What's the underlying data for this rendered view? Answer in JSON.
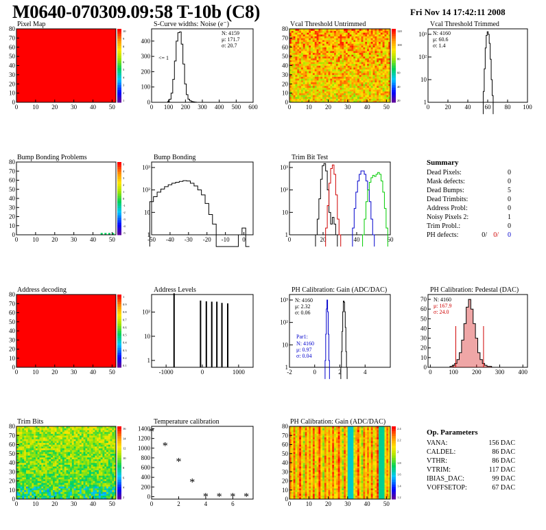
{
  "header": {
    "title": "M0640-070309.09:58 T-10b (C8)",
    "date": "Fri Nov 14 17:42:11 2008"
  },
  "colors": {
    "hist_black": "#000000",
    "red": "#d00000",
    "blue": "#0000cc",
    "green": "#00cc00",
    "pixelmap_fill": "#ff0000"
  },
  "colorbar_ticks": {
    "pixel_map": [
      "10",
      "9",
      "8",
      "7",
      "6",
      "5",
      "4",
      "3",
      "2",
      "1"
    ],
    "vcal": [
      "120",
      "100",
      "80",
      "60",
      "40",
      "20"
    ],
    "bump": [
      "5",
      "4",
      "3",
      "2",
      "1",
      "0",
      "-1",
      "-2",
      "-3",
      "-4",
      "-5"
    ],
    "address": [
      "1",
      "0.9",
      "0.8",
      "0.7",
      "0.6",
      "0.5",
      "0.4",
      "0.3",
      "0.2",
      "0.1"
    ],
    "trim_bits": [
      "16",
      "14",
      "12",
      "10",
      "8",
      "6",
      "4",
      "2"
    ],
    "ph_gain": [
      "2.4",
      "2.2",
      "2",
      "1.8",
      "1.6",
      "1.4",
      "1.2"
    ]
  },
  "summary": {
    "title": "Summary",
    "rows": [
      {
        "label": "Dead Pixels:",
        "value": "0"
      },
      {
        "label": "Mask defects:",
        "value": "0"
      },
      {
        "label": "Dead Bumps:",
        "value": "5"
      },
      {
        "label": "Dead Trimbits:",
        "value": "0"
      },
      {
        "label": "Address Probl:",
        "value": "0"
      },
      {
        "label": "Noisy Pixels 2:",
        "value": "1"
      },
      {
        "label": "Trim Probl.:",
        "value": "0"
      }
    ],
    "ph_defects": {
      "label": "PH defects:",
      "v1": "0/",
      "v2": "0/",
      "v3": "0"
    }
  },
  "op_params": {
    "title": "Op. Parameters",
    "rows": [
      {
        "label": "VANA:",
        "value": "156 DAC"
      },
      {
        "label": "CALDEL:",
        "value": "86 DAC"
      },
      {
        "label": "VTHR:",
        "value": "86 DAC"
      },
      {
        "label": "VTRIM:",
        "value": "117 DAC"
      },
      {
        "label": "IBIAS_DAC:",
        "value": "99 DAC"
      },
      {
        "label": "VOFFSETOP:",
        "value": "67 DAC"
      }
    ]
  },
  "chart_data": [
    {
      "id": "pixel_map",
      "type": "heatmap",
      "title": "Pixel Map",
      "xlim": [
        0,
        52
      ],
      "ylim": [
        0,
        80
      ],
      "xticks": [
        "0",
        "10",
        "20",
        "30",
        "40",
        "50"
      ],
      "yticks": [
        "0",
        "10",
        "20",
        "30",
        "40",
        "50",
        "60",
        "70",
        "80"
      ],
      "fill": "uniform red (value 10)"
    },
    {
      "id": "scurve",
      "type": "bar",
      "title": "S-Curve widths: Noise (e⁻)",
      "xlim": [
        0,
        600
      ],
      "log": false,
      "xticks": [
        "0",
        "100",
        "200",
        "300",
        "400",
        "500",
        "600"
      ],
      "yticks": [
        "0",
        "100",
        "200",
        "300",
        "400"
      ],
      "stats": [
        "N: 4159",
        "μ: 171.7",
        "σ: 20.7"
      ],
      "annotation": "<= 1",
      "x": [
        100,
        110,
        120,
        130,
        140,
        150,
        160,
        170,
        180,
        190,
        200,
        210,
        220,
        230,
        240,
        250,
        260
      ],
      "values": [
        5,
        20,
        60,
        150,
        270,
        400,
        455,
        460,
        380,
        250,
        120,
        50,
        20,
        10,
        5,
        3,
        1
      ]
    },
    {
      "id": "vcal_untrimmed",
      "type": "heatmap",
      "title": "Vcal Threshold Untrimmed",
      "xlim": [
        0,
        52
      ],
      "ylim": [
        0,
        80
      ],
      "xticks": [
        "0",
        "10",
        "20",
        "30",
        "40",
        "50"
      ],
      "yticks": [
        "0",
        "10",
        "20",
        "30",
        "40",
        "50",
        "60",
        "70",
        "80"
      ],
      "fill": "noisy orange-red (values ~70-110)"
    },
    {
      "id": "vcal_trimmed",
      "type": "bar",
      "title": "Vcal Threshold Trimmed",
      "xlim": [
        0,
        100
      ],
      "log": true,
      "xticks": [
        "0",
        "20",
        "40",
        "60",
        "80",
        "100"
      ],
      "yticks": [
        "1",
        "10",
        "10²",
        "10³"
      ],
      "stats": [
        "N: 4160",
        "μ: 60.6",
        "σ: 1.4"
      ],
      "x": [
        56,
        57,
        58,
        59,
        60,
        61,
        62,
        63,
        64,
        65
      ],
      "values": [
        3,
        30,
        250,
        900,
        1300,
        1000,
        400,
        80,
        10,
        2
      ]
    },
    {
      "id": "bump_problems",
      "type": "heatmap",
      "title": "Bump Bonding Problems",
      "xlim": [
        0,
        52
      ],
      "ylim": [
        0,
        80
      ],
      "xticks": [
        "0",
        "10",
        "20",
        "30",
        "40",
        "50"
      ],
      "yticks": [
        "0",
        "10",
        "20",
        "30",
        "40",
        "50",
        "60",
        "70",
        "80"
      ],
      "fill": "empty except 5 cells near x=45-50, y=0-1"
    },
    {
      "id": "bump_bonding",
      "type": "bar",
      "title": "Bump Bonding",
      "xlim": [
        -50,
        5
      ],
      "log": true,
      "xticks": [
        "-50",
        "-40",
        "-30",
        "-20",
        "-10",
        "0"
      ],
      "yticks": [
        "1",
        "10",
        "10²",
        "10³"
      ],
      "x": [
        -50,
        -48,
        -46,
        -44,
        -42,
        -40,
        -38,
        -36,
        -34,
        -32,
        -30,
        -28,
        -26,
        -24,
        -22,
        -20,
        -18,
        -16,
        -14,
        -12,
        -10,
        -8,
        -6,
        -4,
        -2,
        0,
        2
      ],
      "values": [
        30,
        50,
        80,
        110,
        140,
        170,
        200,
        220,
        240,
        260,
        250,
        200,
        150,
        100,
        60,
        25,
        8,
        3,
        0,
        0,
        0,
        0,
        0,
        0,
        1,
        2,
        0
      ]
    },
    {
      "id": "trim_bit_test",
      "type": "bar",
      "title": "Trim Bit Test",
      "xlim": [
        0,
        60
      ],
      "log": true,
      "xticks": [
        "0",
        "20",
        "40",
        "60"
      ],
      "yticks": [
        "1",
        "10",
        "10²",
        "10³"
      ],
      "series": [
        {
          "color": "black",
          "x": [
            16,
            17,
            18,
            19,
            20,
            21,
            22,
            23,
            24,
            25,
            26,
            27,
            28
          ],
          "values": [
            1,
            5,
            40,
            300,
            1200,
            1500,
            700,
            100,
            10,
            3,
            6,
            3,
            1
          ]
        },
        {
          "color": "red",
          "x": [
            22,
            23,
            24,
            25,
            26,
            27,
            28,
            29,
            30
          ],
          "values": [
            2,
            20,
            200,
            900,
            1300,
            500,
            60,
            5,
            1
          ]
        },
        {
          "color": "blue",
          "x": [
            38,
            39,
            40,
            41,
            42,
            43,
            44,
            45,
            46,
            47,
            48,
            49,
            50
          ],
          "values": [
            2,
            15,
            80,
            250,
            500,
            700,
            700,
            500,
            250,
            100,
            30,
            5,
            1
          ]
        },
        {
          "color": "green",
          "x": [
            44,
            45,
            46,
            47,
            48,
            49,
            50,
            51,
            52,
            53,
            54,
            55,
            56,
            57,
            58
          ],
          "values": [
            1,
            5,
            30,
            100,
            220,
            350,
            450,
            400,
            500,
            600,
            500,
            250,
            80,
            15,
            2
          ]
        }
      ]
    },
    {
      "id": "address_decoding",
      "type": "heatmap",
      "title": "Address decoding",
      "xlim": [
        0,
        52
      ],
      "ylim": [
        0,
        80
      ],
      "xticks": [
        "0",
        "10",
        "20",
        "30",
        "40",
        "50"
      ],
      "yticks": [
        "0",
        "10",
        "20",
        "30",
        "40",
        "50",
        "60",
        "70",
        "80"
      ],
      "fill": "uniform red (value 1)"
    },
    {
      "id": "address_levels",
      "type": "bar",
      "title": "Address Levels",
      "xlim": [
        -1400,
        1400
      ],
      "log": true,
      "xticks": [
        "-1000",
        "0",
        "1000"
      ],
      "yticks": [
        "1",
        "10",
        "10²"
      ],
      "x": [
        -780,
        -50,
        110,
        260,
        400,
        540,
        700
      ],
      "values": [
        600,
        300,
        280,
        270,
        270,
        240,
        230
      ]
    },
    {
      "id": "ph_gain_hist",
      "type": "bar",
      "title": "PH Calibration: Gain (ADC/DAC)",
      "xlim": [
        -2,
        6
      ],
      "log": true,
      "xticks": [
        "-2",
        "0",
        "2",
        "4"
      ],
      "yticks": [
        "1",
        "10",
        "10²",
        "10³"
      ],
      "stats": [
        "N: 4160",
        "μ: 2.32",
        "σ: 0.06"
      ],
      "par1": {
        "title": "Par1:",
        "lines": [
          "N: 4160",
          "μ: 0.97",
          "σ: 0.04"
        ]
      },
      "series": [
        {
          "color": "black",
          "x": [
            2.1,
            2.15,
            2.2,
            2.25,
            2.3,
            2.35,
            2.4,
            2.45,
            2.5,
            2.55
          ],
          "values": [
            1,
            5,
            40,
            300,
            900,
            800,
            300,
            60,
            5,
            1
          ]
        },
        {
          "color": "blue",
          "x": [
            0.85,
            0.9,
            0.95,
            1.0,
            1.05,
            1.1,
            1.15
          ],
          "values": [
            2,
            30,
            400,
            1000,
            300,
            30,
            2
          ]
        }
      ]
    },
    {
      "id": "ph_pedestal",
      "type": "bar",
      "title": "PH Calibration: Pedestal (DAC)",
      "xlim": [
        -10,
        420
      ],
      "log": false,
      "xticks": [
        "0",
        "100",
        "200",
        "300",
        "400"
      ],
      "yticks": [
        "0",
        "10",
        "20",
        "30",
        "40",
        "50",
        "60",
        "70"
      ],
      "stats": [
        "N: 4160",
        "μ: 167.9",
        "σ: 24.0"
      ],
      "cut_lines": [
        110,
        230
      ],
      "x": [
        90,
        100,
        110,
        120,
        130,
        140,
        150,
        160,
        170,
        180,
        190,
        200,
        210,
        220,
        230,
        240,
        250,
        260
      ],
      "values": [
        1,
        2,
        4,
        8,
        15,
        28,
        45,
        62,
        70,
        60,
        45,
        30,
        15,
        8,
        4,
        2,
        1,
        1
      ]
    },
    {
      "id": "trim_bits",
      "type": "heatmap",
      "title": "Trim Bits",
      "xlim": [
        0,
        52
      ],
      "ylim": [
        0,
        80
      ],
      "xticks": [
        "0",
        "10",
        "20",
        "30",
        "40",
        "50"
      ],
      "yticks": [
        "0",
        "10",
        "20",
        "30",
        "40",
        "50",
        "60",
        "70",
        "80"
      ],
      "fill": "green-yellow (values ~6-12), blue/cyan near bottom"
    },
    {
      "id": "temperature",
      "type": "scatter",
      "title": "Temperature calibration",
      "xlim": [
        0,
        7.5
      ],
      "ylim": [
        -50,
        1450
      ],
      "xticks": [
        "0",
        "2",
        "4",
        "6"
      ],
      "yticks": [
        "0",
        "200",
        "400",
        "600",
        "800",
        "1000",
        "1200",
        "1400"
      ],
      "x": [
        0,
        1,
        2,
        3,
        4,
        5,
        6,
        7
      ],
      "values": [
        1340,
        1050,
        720,
        300,
        0,
        0,
        0,
        0
      ]
    },
    {
      "id": "ph_gain_map",
      "type": "heatmap",
      "title": "PH Calibration: Gain (ADC/DAC)",
      "xlim": [
        0,
        52
      ],
      "ylim": [
        0,
        80
      ],
      "xticks": [
        "0",
        "10",
        "20",
        "30",
        "40",
        "50"
      ],
      "yticks": [
        "0",
        "10",
        "20",
        "30",
        "40",
        "50",
        "60",
        "70",
        "80"
      ],
      "fill": "column striped, values ~1.8-2.4"
    }
  ]
}
